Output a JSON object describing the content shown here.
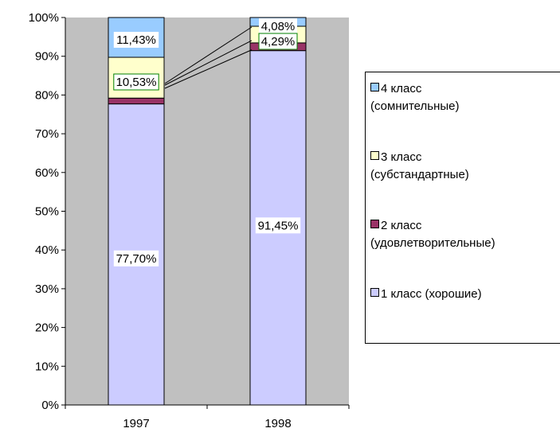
{
  "chart_data": {
    "type": "bar",
    "stacked": true,
    "percent": true,
    "categories": [
      "1997",
      "1998"
    ],
    "series": [
      {
        "name": "1 класс (хорошие)",
        "values": [
          77.7,
          91.45
        ],
        "labels": [
          "77,70%",
          "91,45%"
        ],
        "color": "#ccccff"
      },
      {
        "name": "2 класс (удовлетворительные)",
        "values": [
          1.5,
          2.0
        ],
        "labels": [
          "",
          ""
        ],
        "color": "#993366"
      },
      {
        "name": "3 класс (субстандартные)",
        "values": [
          10.53,
          4.29
        ],
        "labels": [
          "10,53%",
          "4,29%"
        ],
        "color": "#ffffcc"
      },
      {
        "name": "4 класс (сомнительные)",
        "values": [
          11.43,
          4.08
        ],
        "labels": [
          "11,43%",
          "4,08%"
        ],
        "color": "#99ccff"
      }
    ],
    "ylim": [
      0,
      100
    ],
    "y_ticks": [
      "0%",
      "10%",
      "20%",
      "30%",
      "40%",
      "50%",
      "60%",
      "70%",
      "80%",
      "90%",
      "100%"
    ],
    "plot_background": "#c0c0c0",
    "legend_position": "right"
  },
  "legend": [
    {
      "text": "4 класс\n(сомнительные)",
      "color": "#99ccff"
    },
    {
      "text": "3 класс\n(субстандартные)",
      "color": "#ffffcc"
    },
    {
      "text": "2 класс\n(удовлетворительные)",
      "color": "#993366"
    },
    {
      "text": "1 класс (хорошие)",
      "color": "#ccccff"
    }
  ]
}
